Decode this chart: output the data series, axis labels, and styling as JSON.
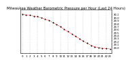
{
  "title": "Milwaukee Weather Barometric Pressure per Hour (Last 24 Hours)",
  "x_values": [
    0,
    1,
    2,
    3,
    4,
    5,
    6,
    7,
    8,
    9,
    10,
    11,
    12,
    13,
    14,
    15,
    16,
    17,
    18,
    19,
    20,
    21,
    22,
    23
  ],
  "y_values": [
    30.11,
    30.08,
    30.07,
    30.04,
    30.02,
    29.98,
    29.93,
    29.9,
    29.82,
    29.76,
    29.68,
    29.6,
    29.52,
    29.44,
    29.36,
    29.28,
    29.2,
    29.13,
    29.06,
    29.01,
    28.98,
    28.96,
    28.95,
    28.94
  ],
  "line_color": "#ff0000",
  "dot_color": "#000000",
  "background_color": "#ffffff",
  "grid_color": "#aaaaaa",
  "text_color": "#000000",
  "ylim": [
    28.8,
    30.25
  ],
  "xlim": [
    -0.5,
    23.5
  ],
  "ytick_labels": [
    "30.1",
    "30.0",
    "29.9",
    "29.8",
    "29.7",
    "29.6",
    "29.5",
    "29.4",
    "29.3",
    "29.2",
    "29.1",
    "29.0"
  ],
  "ytick_values": [
    30.1,
    30.0,
    29.9,
    29.8,
    29.7,
    29.6,
    29.5,
    29.4,
    29.3,
    29.2,
    29.1,
    29.0
  ],
  "xtick_positions": [
    0,
    1,
    2,
    3,
    4,
    5,
    6,
    7,
    8,
    9,
    10,
    11,
    12,
    13,
    14,
    15,
    16,
    17,
    18,
    19,
    20,
    21,
    22,
    23
  ],
  "xtick_labels": [
    "0",
    "1",
    "2",
    "3",
    "4",
    "5",
    "6",
    "7",
    "8",
    "9",
    "10",
    "11",
    "12",
    "13",
    "14",
    "15",
    "16",
    "17",
    "18",
    "19",
    "20",
    "21",
    "22",
    "23"
  ],
  "title_fontsize": 3.8,
  "tick_fontsize": 2.8,
  "line_width": 0.5,
  "dot_size": 2.0,
  "grid_vline_positions": [
    0,
    2,
    4,
    6,
    8,
    10,
    12,
    14,
    16,
    18,
    20,
    22
  ]
}
